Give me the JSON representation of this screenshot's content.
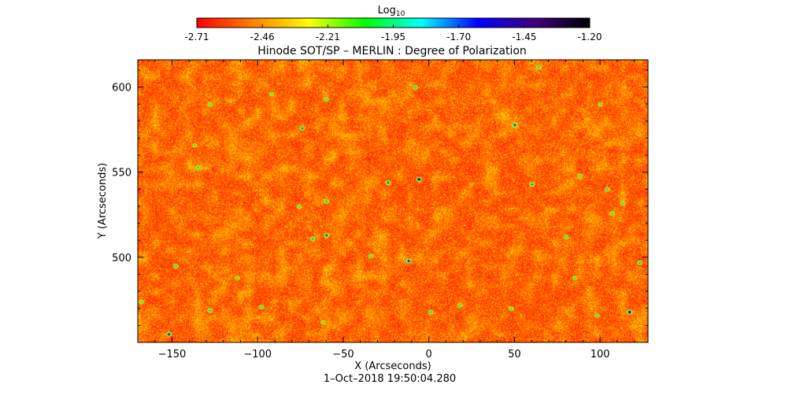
{
  "chart_data": {
    "type": "heatmap",
    "title": "Hinode SOT/SP – MERLIN : Degree of Polarization",
    "xlabel": "X (Arcseconds)",
    "ylabel": "Y (Arcseconds)",
    "xlim": [
      -170,
      128
    ],
    "ylim": [
      450,
      616
    ],
    "x_ticks": [
      -150,
      -100,
      -50,
      0,
      50,
      100
    ],
    "y_ticks": [
      500,
      550,
      600
    ],
    "timestamp": "1–Oct–2018 19:50:04.280",
    "colorbar": {
      "label_base": "Log",
      "label_sub": "10",
      "range": [
        -2.71,
        -1.2
      ],
      "ticks": [
        "-2.71",
        "-2.46",
        "-2.21",
        "-1.95",
        "-1.70",
        "-1.45",
        "-1.20"
      ],
      "colormap": [
        "#ff0000",
        "#ff8000",
        "#ffff00",
        "#00ff00",
        "#00ffff",
        "#0000ff",
        "#400080",
        "#000000"
      ]
    },
    "field": {
      "dominant_range": [
        -2.71,
        -2.3
      ],
      "features": [
        {
          "x": 64,
          "y": 612,
          "v": -1.75
        },
        {
          "x": -128,
          "y": 590,
          "v": -1.8
        },
        {
          "x": -92,
          "y": 596,
          "v": -1.85
        },
        {
          "x": -60,
          "y": 593,
          "v": -1.8
        },
        {
          "x": -8,
          "y": 600,
          "v": -1.75
        },
        {
          "x": 50,
          "y": 578,
          "v": -1.5
        },
        {
          "x": 100,
          "y": 590,
          "v": -1.85
        },
        {
          "x": -74,
          "y": 576,
          "v": -1.65
        },
        {
          "x": -137,
          "y": 566,
          "v": -1.9
        },
        {
          "x": -135,
          "y": 553,
          "v": -1.75
        },
        {
          "x": -6,
          "y": 546,
          "v": -1.25
        },
        {
          "x": -24,
          "y": 544,
          "v": -1.6
        },
        {
          "x": 60,
          "y": 543,
          "v": -1.65
        },
        {
          "x": 88,
          "y": 548,
          "v": -1.8
        },
        {
          "x": 104,
          "y": 540,
          "v": -1.75
        },
        {
          "x": 113,
          "y": 532,
          "v": -1.8
        },
        {
          "x": 107,
          "y": 526,
          "v": -1.85
        },
        {
          "x": 80,
          "y": 512,
          "v": -1.8
        },
        {
          "x": -60,
          "y": 533,
          "v": -1.75
        },
        {
          "x": -76,
          "y": 530,
          "v": -1.85
        },
        {
          "x": -60,
          "y": 513,
          "v": -1.55
        },
        {
          "x": -68,
          "y": 511,
          "v": -1.7
        },
        {
          "x": -12,
          "y": 498,
          "v": -1.45
        },
        {
          "x": -34,
          "y": 501,
          "v": -1.8
        },
        {
          "x": -148,
          "y": 495,
          "v": -1.75
        },
        {
          "x": 123,
          "y": 497,
          "v": -1.7
        },
        {
          "x": 85,
          "y": 488,
          "v": -1.85
        },
        {
          "x": -112,
          "y": 488,
          "v": -1.9
        },
        {
          "x": -98,
          "y": 471,
          "v": -1.8
        },
        {
          "x": -128,
          "y": 469,
          "v": -1.7
        },
        {
          "x": 1,
          "y": 468,
          "v": -1.75
        },
        {
          "x": 18,
          "y": 472,
          "v": -1.8
        },
        {
          "x": 117,
          "y": 468,
          "v": -1.3
        },
        {
          "x": -152,
          "y": 455,
          "v": -1.45
        },
        {
          "x": -168,
          "y": 474,
          "v": -1.8
        },
        {
          "x": -62,
          "y": 462,
          "v": -1.85
        },
        {
          "x": 48,
          "y": 470,
          "v": -1.9
        },
        {
          "x": 98,
          "y": 466,
          "v": -1.85
        }
      ]
    }
  }
}
